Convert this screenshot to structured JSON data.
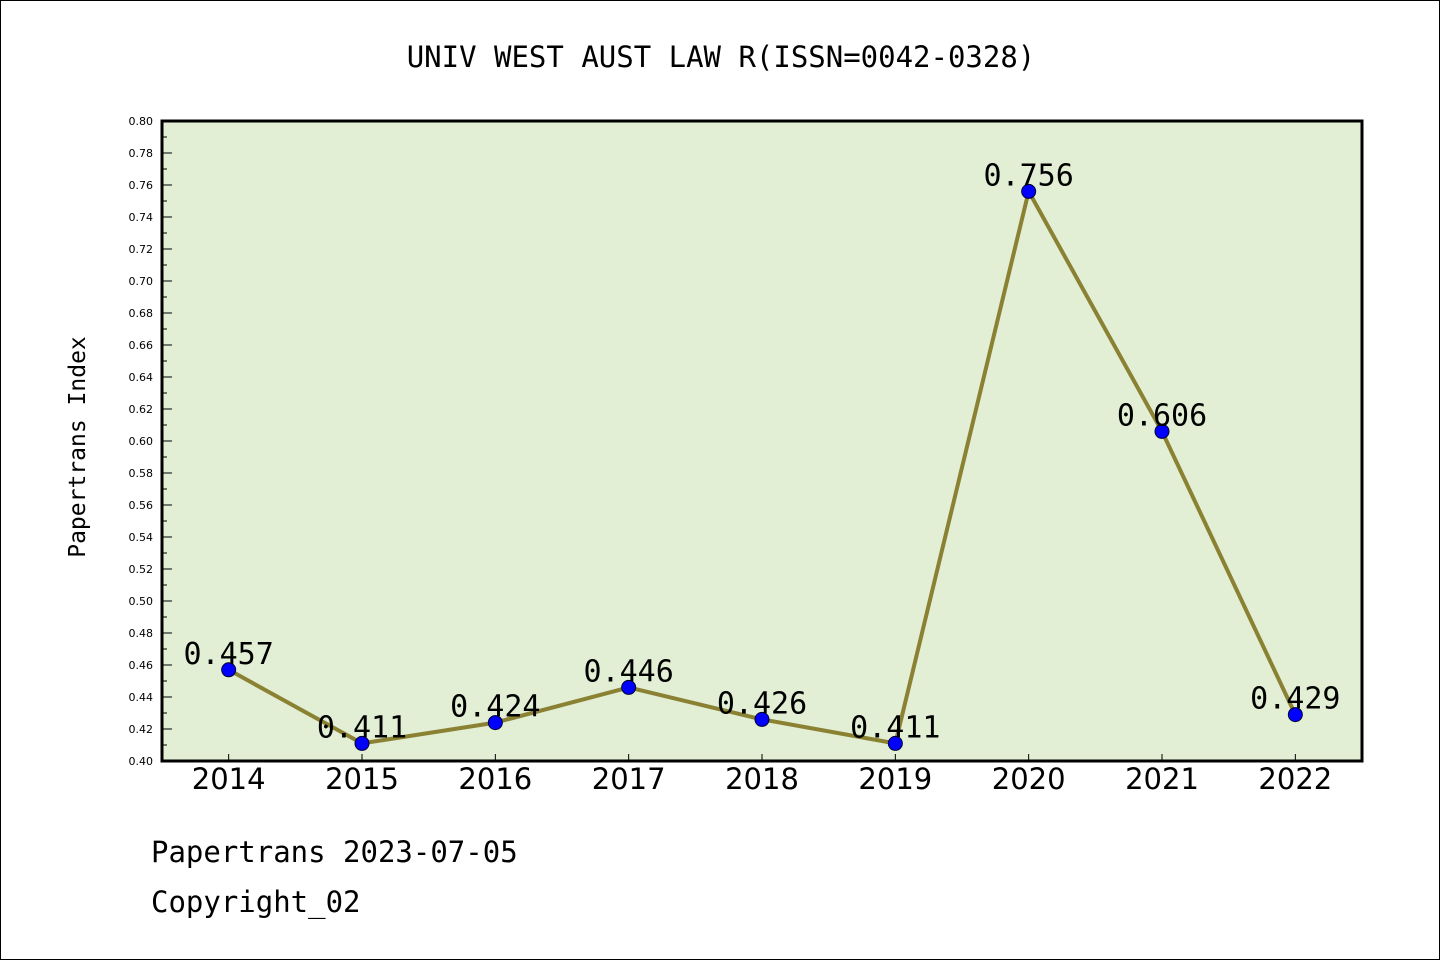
{
  "chart_data": {
    "type": "line",
    "title": "UNIV WEST AUST LAW R(ISSN=0042-0328)",
    "xlabel": "",
    "ylabel": "Papertrans Index",
    "categories": [
      "2014",
      "2015",
      "2016",
      "2017",
      "2018",
      "2019",
      "2020",
      "2021",
      "2022"
    ],
    "series": [
      {
        "values": [
          0.457,
          0.411,
          0.424,
          0.446,
          0.426,
          0.411,
          0.756,
          0.606,
          0.429
        ],
        "labels": [
          "0.457",
          "0.411",
          "0.424",
          "0.446",
          "0.426",
          "0.411",
          "0.756",
          "0.606",
          "0.429"
        ]
      }
    ],
    "ylim": [
      0.4,
      0.8
    ],
    "yticks": [
      "0.40",
      "0.42",
      "0.44",
      "0.46",
      "0.48",
      "0.50",
      "0.52",
      "0.54",
      "0.56",
      "0.58",
      "0.60",
      "0.62",
      "0.64",
      "0.66",
      "0.68",
      "0.70",
      "0.72",
      "0.74",
      "0.76",
      "0.78",
      "0.80"
    ],
    "grid": false,
    "legend": "none",
    "colors": {
      "plot_background": "#e2efd4",
      "line": "#8b8133",
      "marker": "#0000ff"
    }
  },
  "footer": {
    "line1": "Papertrans 2023-07-05",
    "line2": "Copyright_02"
  }
}
